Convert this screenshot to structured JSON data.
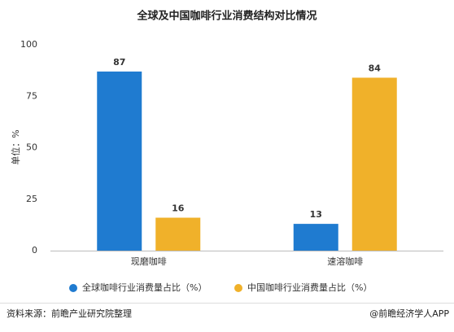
{
  "chart_data": {
    "type": "bar",
    "title": "全球及中国咖啡行业消费结构对比情况",
    "y_label": "单位：%",
    "categories": [
      "现磨咖啡",
      "速溶咖啡"
    ],
    "series": [
      {
        "name": "全球咖啡行业消费量占比（%）",
        "color": "#1f7bd0",
        "values": [
          87,
          13
        ]
      },
      {
        "name": "中国咖啡行业消费量占比（%）",
        "color": "#f0b12a",
        "values": [
          16,
          84
        ]
      }
    ],
    "ylim": [
      0,
      100
    ],
    "yticks": [
      0,
      25,
      50,
      75,
      100
    ],
    "grid": false,
    "legend": "bottom"
  },
  "footer": {
    "source": "资料来源：前瞻产业研究院整理",
    "brand": "@前瞻经济学人APP"
  }
}
